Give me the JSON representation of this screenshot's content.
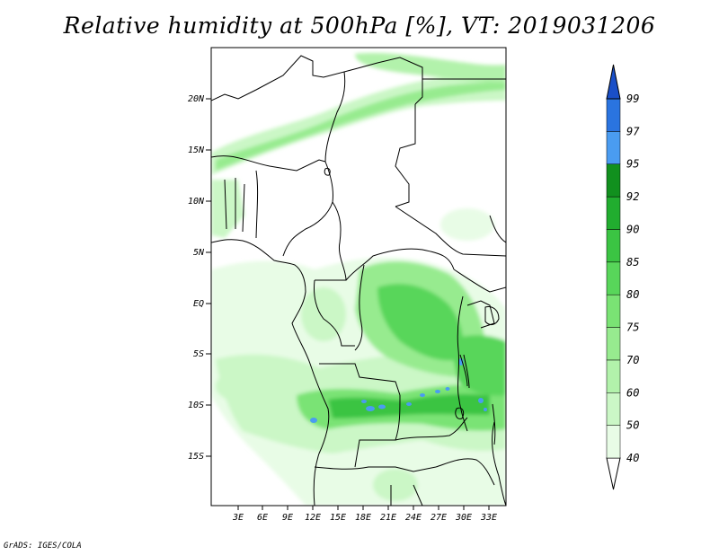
{
  "title": "Relative humidity at 500hPa [%], VT: 2019031206",
  "credit": "GrADS: IGES/COLA",
  "map": {
    "lat_labels": [
      "20N",
      "15N",
      "10N",
      "5N",
      "EQ",
      "5S",
      "10S",
      "15S"
    ],
    "lon_labels": [
      "3E",
      "6E",
      "9E",
      "12E",
      "15E",
      "18E",
      "21E",
      "24E",
      "27E",
      "30E",
      "33E"
    ]
  },
  "colorbar": {
    "levels": [
      "40",
      "50",
      "60",
      "70",
      "75",
      "80",
      "85",
      "90",
      "92",
      "95",
      "97",
      "99"
    ],
    "colors": [
      "#ffffff",
      "#e8fce6",
      "#cbf7c6",
      "#b2f2ab",
      "#97eb8f",
      "#7ae374",
      "#58d65a",
      "#3bc443",
      "#21ad2f",
      "#11901e",
      "#4a9cf1",
      "#2a74e0",
      "#1a4fc8"
    ]
  }
}
